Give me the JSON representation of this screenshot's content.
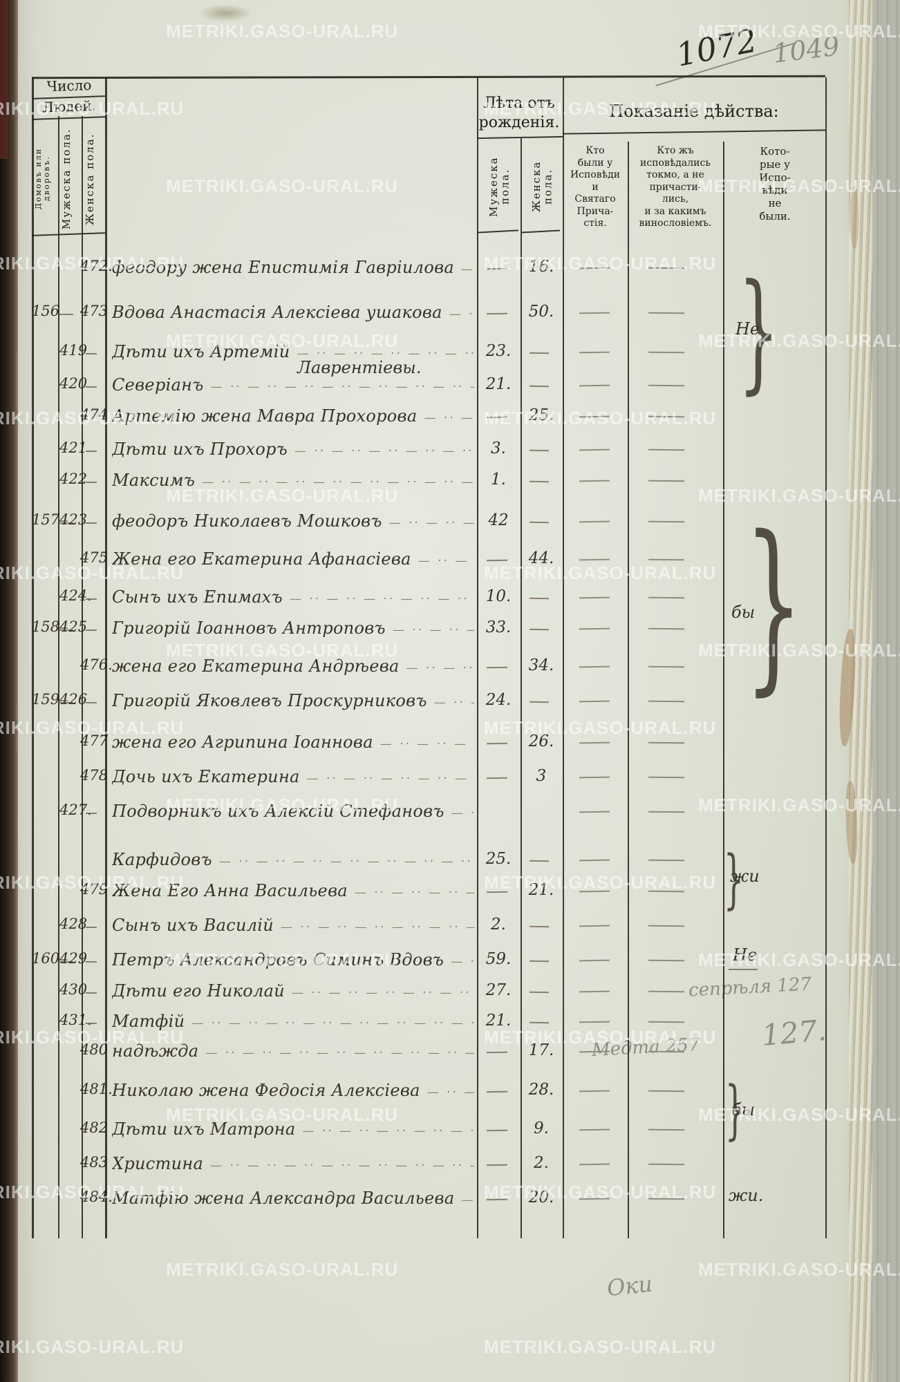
{
  "page": {
    "ink_number": "1072",
    "pencil_number": "1049",
    "bottom_note": "Оки",
    "watermark": "METRIKI.GASO-URAL.RU"
  },
  "table": {
    "header": {
      "count_line1": "Число",
      "count_line2": "Людей.",
      "col_houses": "Домовъ или\nдворовъ.",
      "col_male_count": "Мужеска пола.",
      "col_female_count": "Женска пола.",
      "age_group": "Лѣта отъ\nрожденія.",
      "age_male": "Мужеска пола.",
      "age_female": "Женска пола.",
      "action_group": "Показаніе дѣйства:",
      "action_col1": "Кто\nбыли у\nИсповѣди\nи\nСвятаго\nПрича-\nстія.",
      "action_col2": "Кто жъ\nисповѣдались\nтокмо, а не\nпричасти-\nлись,\nи за какимъ\nвинословіемъ.",
      "action_col3": "Кото-\nрые у\nИспо-\nвѣди\nне\nбыли."
    },
    "rows": [
      {
        "num_f": "472.",
        "name": "феодору жена Епистимія Гавріилова",
        "age_f": "16."
      },
      {
        "house": "156",
        "num_f": "473",
        "name": "Вдова Анастасія Алексіева ушакова",
        "age_f": "50."
      },
      {
        "num_m": "419",
        "name": "Дѣти ихъ Артемій",
        "age_m": "23."
      },
      {
        "name": "Лаврентіевы.",
        "interline": true
      },
      {
        "num_m": "420",
        "name": "Северіанъ",
        "age_m": "21."
      },
      {
        "num_f": "474",
        "name": "Артемію жена Мавра Прохорова",
        "age_f": "25."
      },
      {
        "num_m": "421",
        "name": "Дѣти ихъ Прохоръ",
        "age_m": "3."
      },
      {
        "num_m": "422",
        "name": "Максимъ",
        "age_m": "1."
      },
      {
        "house": "157",
        "num_m": "423",
        "name": "феодоръ Николаевъ Мошковъ",
        "age_m": "42"
      },
      {
        "num_f": "475",
        "name": "Жена его Екатерина Афанасіева",
        "age_f": "44."
      },
      {
        "num_m": "424.",
        "name": "Сынъ ихъ Епимахъ",
        "age_m": "10."
      },
      {
        "house": "158",
        "num_m": "425",
        "name": "Григорій Іоанновъ Антроповъ",
        "age_m": "33."
      },
      {
        "num_f": "476.",
        "name": "жена его Екатерина Андрѣева",
        "age_f": "34."
      },
      {
        "house": "159.",
        "num_m": "426",
        "name": "Григорій Яковлевъ Проскурниковъ",
        "age_m": "24."
      },
      {
        "num_f": "477",
        "name": "жена его Агрипина Іоаннова",
        "age_f": "26."
      },
      {
        "num_f": "478",
        "name": "Дочь ихъ Екатерина",
        "age_f": "3"
      },
      {
        "num_m": "427.",
        "name": "Подворникъ ихъ Алексій Стефановъ"
      },
      {
        "name": "Карфидовъ",
        "age_m": "25.",
        "continuation": true
      },
      {
        "num_f": "479",
        "name": "Жена Его Анна Васильева",
        "age_f": "21."
      },
      {
        "num_m": "428",
        "name": "Сынъ ихъ Василій",
        "age_m": "2."
      },
      {
        "house": "160.",
        "num_m": "429",
        "name": "Петръ Александровъ Симинъ Вдовъ",
        "age_m": "59."
      },
      {
        "num_m": "430",
        "name": "Дѣти его Николай",
        "age_m": "27.",
        "pencil": "сепрѣля 127"
      },
      {
        "num_m": "431.",
        "name": "Матфій",
        "age_m": "21.",
        "pencil_big": "127."
      },
      {
        "num_f": "480",
        "name": "надѣжда",
        "age_f": "17.",
        "pencil": "Медта 257"
      },
      {
        "num_f": "481.",
        "name": "Николаю жена Федосія Алексіева",
        "age_f": "28."
      },
      {
        "num_f": "482",
        "name": "Дѣти ихъ Матрона",
        "age_f": "9."
      },
      {
        "num_f": "483",
        "name": "Христина",
        "age_f": "2."
      },
      {
        "num_f": "484.",
        "name": "Матфію жена Александра Васильева",
        "age_f": "20."
      }
    ],
    "margin_marks": [
      "Не",
      "бы",
      "жи",
      "Не",
      "бы",
      "жи."
    ]
  }
}
